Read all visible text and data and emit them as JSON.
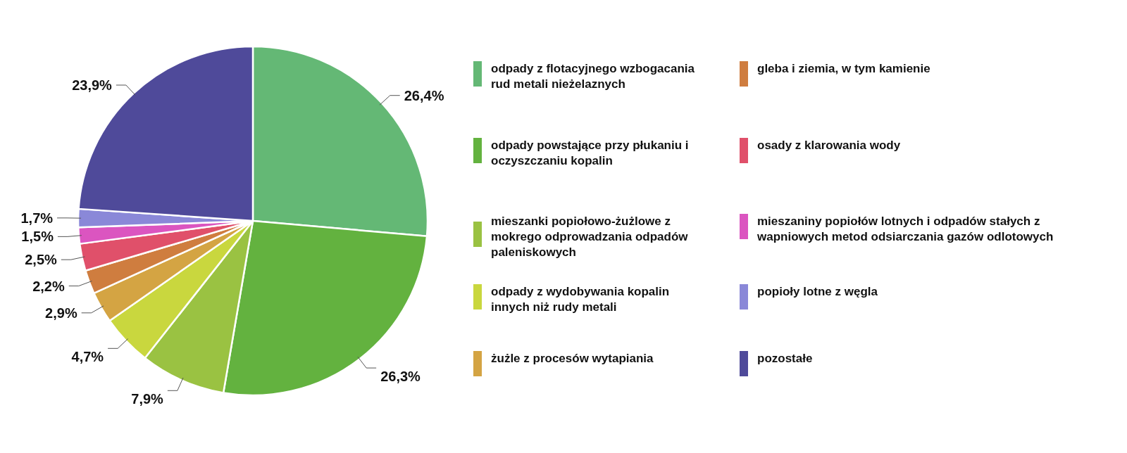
{
  "chart_data": {
    "type": "pie",
    "categories": [
      "odpady z flotacyjnego wzbogacania rud metali nieżelaznych",
      "odpady powstające przy płukaniu i oczyszczaniu kopalin",
      "mieszanki popiołowo-żużlowe z mokrego odprowadzania odpadów paleniskowych",
      "odpady z wydobywania kopalin innych niż rudy metali",
      "żużle z procesów wytapiania",
      "gleba i ziemia, w tym kamienie",
      "osady z klarowania wody",
      "mieszaniny popiołów lotnych i odpadów stałych z wapniowych metod odsiarczania gazów odlotowych",
      "popioły lotne z węgla",
      "pozostałe"
    ],
    "values": [
      26.4,
      26.3,
      7.9,
      4.7,
      2.9,
      2.2,
      2.5,
      1.5,
      1.7,
      23.9
    ],
    "value_labels": [
      "26,4%",
      "26,3%",
      "7,9%",
      "4,7%",
      "2,9%",
      "2,2%",
      "2,5%",
      "1,5%",
      "1,7%",
      "23,9%"
    ],
    "colors": [
      "#64b875",
      "#63b23f",
      "#9ac242",
      "#c9d73e",
      "#d4a443",
      "#cf7d3f",
      "#e0506a",
      "#db55c0",
      "#8a88d8",
      "#4f4a9a"
    ],
    "legend": "right"
  }
}
